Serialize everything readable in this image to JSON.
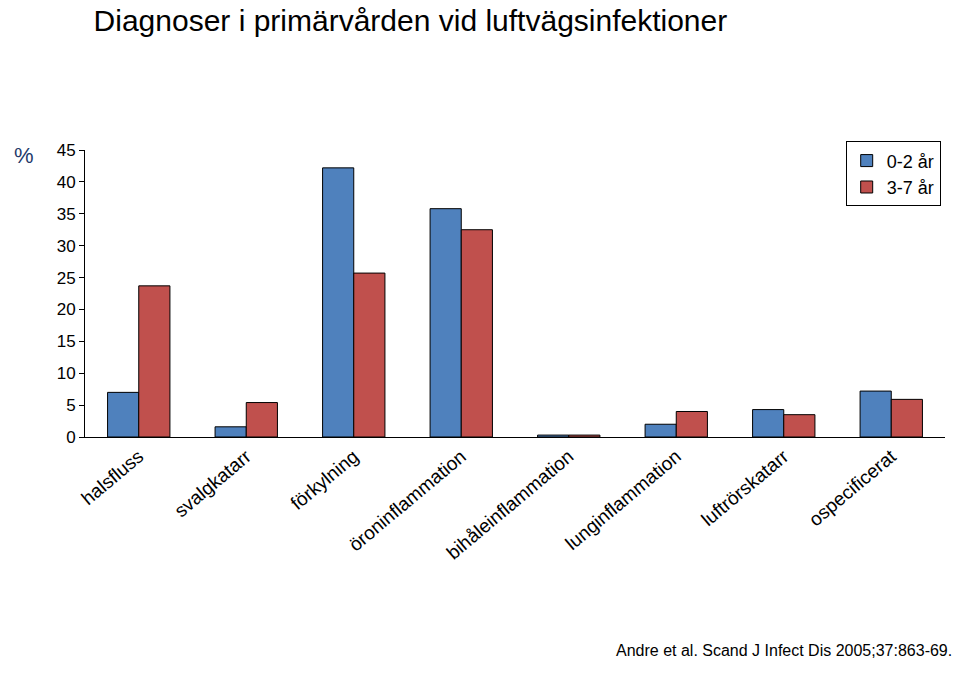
{
  "chart_data": {
    "type": "bar",
    "title": "Diagnoser i primärvården vid luftvägsinfektioner",
    "y_label": "%",
    "annotations": [
      "Andre et al. Scand J Infect Dis 2005;37:863-69."
    ],
    "categories": [
      "halsfluss",
      "svalgkatarr",
      "förkylning",
      "öroninflammation",
      "bihåleinflammation",
      "lunginflammation",
      "luftrörskatarr",
      "ospecificerat"
    ],
    "series": [
      {
        "name": "0-2 år",
        "color": "#4F81BD",
        "values": [
          7.0,
          1.6,
          42.2,
          35.8,
          0.3,
          2.0,
          4.3,
          7.2
        ]
      },
      {
        "name": "3-7 år",
        "color": "#C0504D",
        "values": [
          23.7,
          5.4,
          25.7,
          32.5,
          0.3,
          4.0,
          3.5,
          5.9
        ]
      }
    ],
    "ylim": [
      0,
      45
    ],
    "yticks": [
      0,
      5,
      10,
      15,
      20,
      25,
      30,
      35,
      40,
      45
    ],
    "grid": false,
    "legend": "upper right"
  }
}
